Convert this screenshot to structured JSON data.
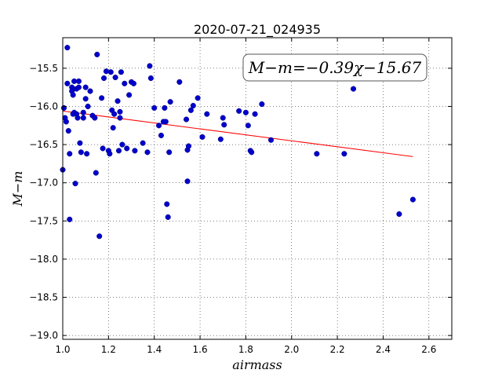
{
  "chart_data": {
    "type": "scatter",
    "title": "2020-07-21_024935",
    "xlabel": "airmass",
    "ylabel": "M−m",
    "xlim": [
      1.0,
      2.7
    ],
    "ylim": [
      -19.05,
      -15.1
    ],
    "xticks": [
      1.0,
      1.2,
      1.4,
      1.6,
      1.8,
      2.0,
      2.2,
      2.4,
      2.6
    ],
    "xtick_labels": [
      "1.0",
      "1.2",
      "1.4",
      "1.6",
      "1.8",
      "2.0",
      "2.2",
      "2.4",
      "2.6"
    ],
    "yticks": [
      -15.5,
      -16.0,
      -16.5,
      -17.0,
      -17.5,
      -18.0,
      -18.5,
      -19.0
    ],
    "ytick_labels": [
      "−15.5",
      "−16.0",
      "−16.5",
      "−17.0",
      "−17.5",
      "−18.0",
      "−18.5",
      "−19.0"
    ],
    "grid": true,
    "annotation": "M−m=−0.39χ−15.67",
    "fit": {
      "slope": -0.39,
      "intercept": -15.67,
      "x_range": [
        1.0,
        2.53
      ],
      "color": "#ff0000"
    },
    "marker_color": "#0000cc",
    "points": [
      [
        1.0,
        -16.83
      ],
      [
        1.005,
        -16.02
      ],
      [
        1.01,
        -16.15
      ],
      [
        1.015,
        -16.2
      ],
      [
        1.02,
        -15.7
      ],
      [
        1.02,
        -15.23
      ],
      [
        1.025,
        -16.32
      ],
      [
        1.03,
        -17.48
      ],
      [
        1.03,
        -16.62
      ],
      [
        1.04,
        -15.75
      ],
      [
        1.04,
        -15.8
      ],
      [
        1.045,
        -16.1
      ],
      [
        1.045,
        -15.85
      ],
      [
        1.05,
        -15.67
      ],
      [
        1.05,
        -16.08
      ],
      [
        1.055,
        -17.01
      ],
      [
        1.06,
        -16.1
      ],
      [
        1.06,
        -15.77
      ],
      [
        1.065,
        -16.15
      ],
      [
        1.07,
        -15.67
      ],
      [
        1.07,
        -15.75
      ],
      [
        1.075,
        -16.48
      ],
      [
        1.08,
        -16.6
      ],
      [
        1.09,
        -16.08
      ],
      [
        1.09,
        -16.15
      ],
      [
        1.1,
        -15.9
      ],
      [
        1.1,
        -15.75
      ],
      [
        1.105,
        -16.62
      ],
      [
        1.11,
        -16.0
      ],
      [
        1.12,
        -15.8
      ],
      [
        1.13,
        -16.12
      ],
      [
        1.14,
        -16.15
      ],
      [
        1.145,
        -16.87
      ],
      [
        1.15,
        -15.32
      ],
      [
        1.16,
        -17.7
      ],
      [
        1.17,
        -15.89
      ],
      [
        1.175,
        -16.55
      ],
      [
        1.18,
        -15.63
      ],
      [
        1.19,
        -15.54
      ],
      [
        1.2,
        -16.58
      ],
      [
        1.205,
        -16.62
      ],
      [
        1.21,
        -15.55
      ],
      [
        1.215,
        -16.05
      ],
      [
        1.22,
        -16.28
      ],
      [
        1.225,
        -16.1
      ],
      [
        1.23,
        -15.62
      ],
      [
        1.24,
        -15.93
      ],
      [
        1.245,
        -16.58
      ],
      [
        1.25,
        -16.07
      ],
      [
        1.25,
        -16.15
      ],
      [
        1.255,
        -15.55
      ],
      [
        1.26,
        -16.5
      ],
      [
        1.27,
        -15.7
      ],
      [
        1.28,
        -16.55
      ],
      [
        1.29,
        -15.85
      ],
      [
        1.3,
        -15.68
      ],
      [
        1.31,
        -15.7
      ],
      [
        1.315,
        -16.58
      ],
      [
        1.35,
        -16.48
      ],
      [
        1.37,
        -16.6
      ],
      [
        1.38,
        -15.47
      ],
      [
        1.385,
        -15.63
      ],
      [
        1.4,
        -16.02
      ],
      [
        1.42,
        -16.25
      ],
      [
        1.43,
        -16.38
      ],
      [
        1.44,
        -16.2
      ],
      [
        1.445,
        -16.02
      ],
      [
        1.45,
        -16.2
      ],
      [
        1.455,
        -17.28
      ],
      [
        1.46,
        -17.45
      ],
      [
        1.465,
        -16.6
      ],
      [
        1.47,
        -15.94
      ],
      [
        1.51,
        -15.68
      ],
      [
        1.54,
        -16.17
      ],
      [
        1.545,
        -16.98
      ],
      [
        1.545,
        -16.57
      ],
      [
        1.55,
        -16.52
      ],
      [
        1.56,
        -16.05
      ],
      [
        1.57,
        -15.99
      ],
      [
        1.59,
        -15.89
      ],
      [
        1.61,
        -16.4
      ],
      [
        1.63,
        -16.1
      ],
      [
        1.69,
        -16.43
      ],
      [
        1.7,
        -16.15
      ],
      [
        1.705,
        -16.24
      ],
      [
        1.77,
        -16.06
      ],
      [
        1.8,
        -16.08
      ],
      [
        1.81,
        -16.25
      ],
      [
        1.82,
        -16.58
      ],
      [
        1.825,
        -16.6
      ],
      [
        1.84,
        -16.1
      ],
      [
        1.87,
        -15.97
      ],
      [
        1.91,
        -16.44
      ],
      [
        2.11,
        -16.62
      ],
      [
        2.23,
        -16.62
      ],
      [
        2.27,
        -15.77
      ],
      [
        2.47,
        -17.41
      ],
      [
        2.53,
        -17.22
      ]
    ]
  }
}
